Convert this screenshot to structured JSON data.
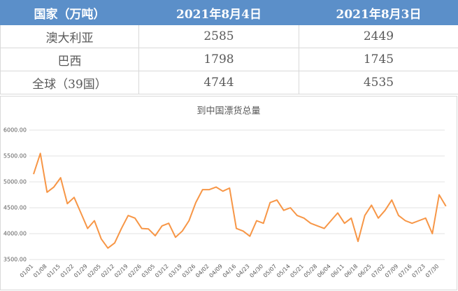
{
  "table": {
    "header": [
      "国家（万吨）",
      "2021年8月4日",
      "2021年8月3日"
    ],
    "rows": [
      [
        "澳大利亚",
        2585,
        2449
      ],
      [
        "巴西",
        1798,
        1745
      ],
      [
        "全球（39国）",
        4744,
        4535
      ]
    ]
  },
  "chart_data": {
    "type": "line",
    "title": "到中国漂货总量",
    "categories": [
      "01/01",
      null,
      "01/08",
      null,
      "01/15",
      null,
      "01/22",
      null,
      "01/29",
      null,
      "02/05",
      null,
      "02/12",
      null,
      "02/19",
      null,
      "02/26",
      null,
      "03/05",
      null,
      "03/12",
      null,
      "03/19",
      null,
      "03/26",
      null,
      "04/02",
      null,
      "04/09",
      null,
      "04/16",
      null,
      "04/23",
      null,
      "04/30",
      null,
      "05/07",
      null,
      "05/14",
      null,
      "05/21",
      null,
      "05/28",
      null,
      "06/04",
      null,
      "06/11",
      null,
      "06/18",
      null,
      "06/25",
      null,
      "07/02",
      null,
      "07/09",
      null,
      "07/16",
      null,
      "07/23",
      null,
      "07/30",
      null
    ],
    "values": [
      5150,
      5550,
      4800,
      4900,
      5080,
      4580,
      4700,
      4400,
      4100,
      4250,
      3900,
      3720,
      3820,
      4100,
      4350,
      4300,
      4100,
      4090,
      3960,
      4150,
      4200,
      3930,
      4050,
      4250,
      4600,
      4850,
      4850,
      4900,
      4820,
      4880,
      4100,
      4050,
      3950,
      4250,
      4200,
      4600,
      4650,
      4450,
      4500,
      4350,
      4300,
      4200,
      4150,
      4100,
      4250,
      4400,
      4200,
      4300,
      3850,
      4350,
      4550,
      4300,
      4450,
      4650,
      4350,
      4250,
      4200,
      4250,
      4300,
      4000,
      4750,
      4530
    ],
    "color": "#f79646",
    "ylim": [
      3500,
      6000
    ],
    "yticks": [
      {
        "value": 3500,
        "label": "3500.00"
      },
      {
        "value": 4000,
        "label": "4000.00"
      },
      {
        "value": 4500,
        "label": "4500.00"
      },
      {
        "value": 5000,
        "label": "5000.00"
      },
      {
        "value": 5500,
        "label": "5500.00"
      },
      {
        "value": 6000,
        "label": "6000.00"
      }
    ],
    "grid": true
  }
}
